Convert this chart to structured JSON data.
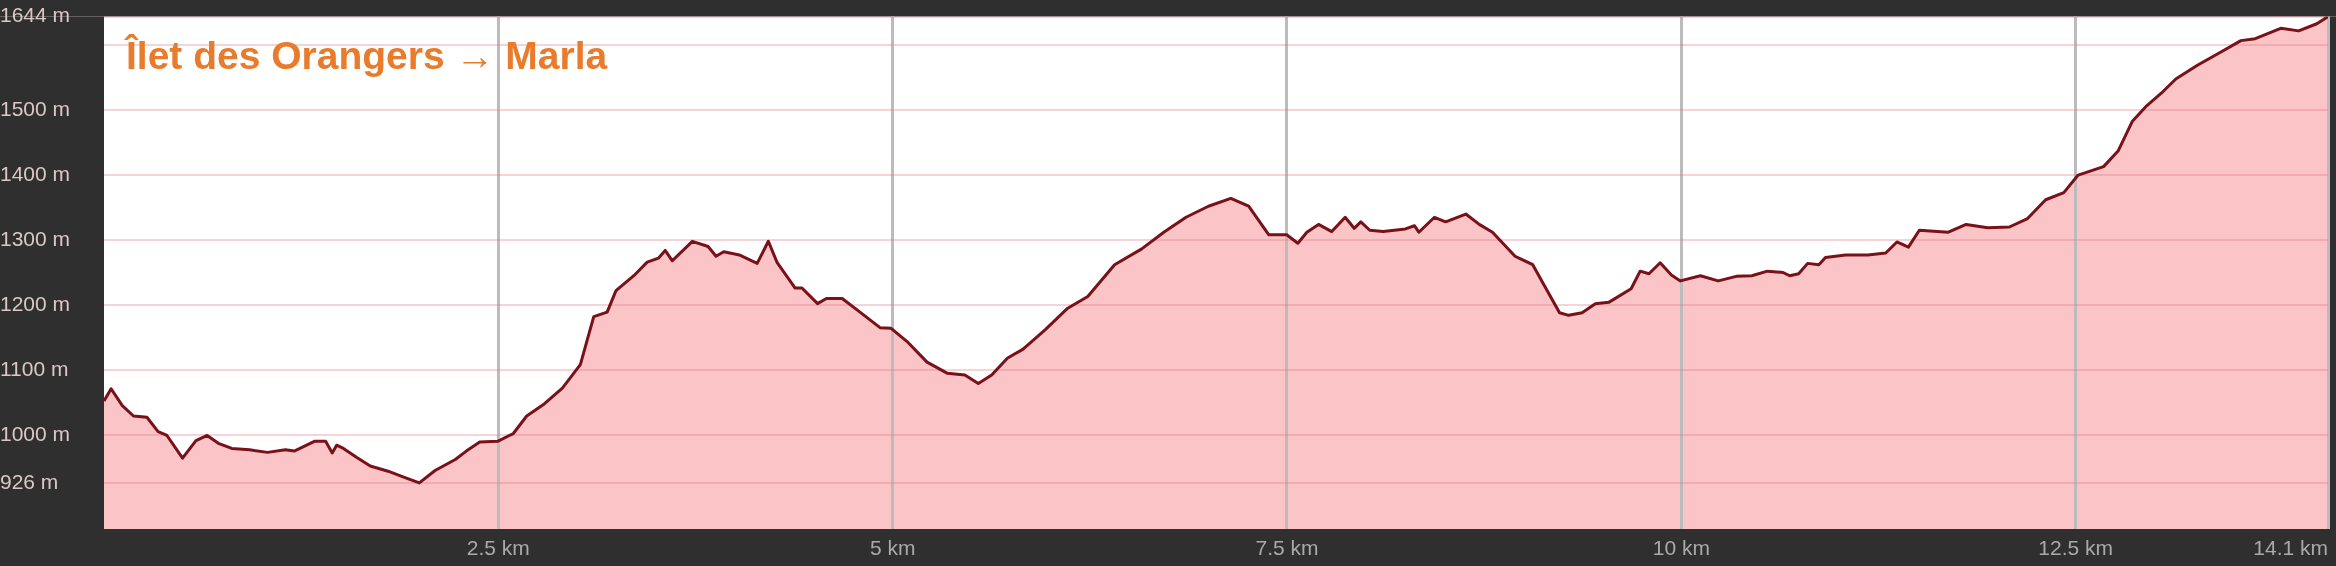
{
  "chart_data": {
    "type": "area",
    "title": "Îlet des Orangers → Marla",
    "x": [
      0,
      0.045,
      0.116,
      0.187,
      0.272,
      0.343,
      0.399,
      0.498,
      0.583,
      0.654,
      0.725,
      0.81,
      0.923,
      1.037,
      1.15,
      1.206,
      1.334,
      1.405,
      1.447,
      1.475,
      1.518,
      1.603,
      1.688,
      1.801,
      1.9,
      1.999,
      2.099,
      2.227,
      2.297,
      2.382,
      2.496,
      2.595,
      2.68,
      2.793,
      2.906,
      3.02,
      3.105,
      3.19,
      3.246,
      3.359,
      3.444,
      3.515,
      3.558,
      3.603,
      3.73,
      3.83,
      3.88,
      3.929,
      4.028,
      4.141,
      4.212,
      4.268,
      4.382,
      4.425,
      4.524,
      4.58,
      4.68,
      4.793,
      4.92,
      4.99,
      5.09,
      5.218,
      5.345,
      5.458,
      5.543,
      5.628,
      5.727,
      5.827,
      5.968,
      6.11,
      6.237,
      6.407,
      6.577,
      6.719,
      6.86,
      7.002,
      7.144,
      7.257,
      7.385,
      7.498,
      7.569,
      7.626,
      7.7,
      7.784,
      7.869,
      7.926,
      7.968,
      8.025,
      8.11,
      8.251,
      8.308,
      8.336,
      8.435,
      8.506,
      8.634,
      8.719,
      8.803,
      8.946,
      9.058,
      9.143,
      9.228,
      9.286,
      9.371,
      9.455,
      9.54,
      9.682,
      9.739,
      9.795,
      9.866,
      9.937,
      9.994,
      10.121,
      10.234,
      10.348,
      10.447,
      10.546,
      10.645,
      10.687,
      10.744,
      10.801,
      10.872,
      10.914,
      11.041,
      11.183,
      11.296,
      11.367,
      11.44,
      11.509,
      11.693,
      11.806,
      11.943,
      12.08,
      12.195,
      12.31,
      12.425,
      12.516,
      12.677,
      12.769,
      12.86,
      12.952,
      13.043,
      13.135,
      13.272,
      13.41,
      13.548,
      13.639,
      13.8,
      13.914,
      14.029,
      14.1
    ],
    "values": [
      1052,
      1071,
      1045,
      1029,
      1027,
      1005,
      999,
      964,
      991,
      999,
      987,
      979,
      977,
      973,
      977,
      975,
      990,
      990,
      972,
      984,
      979,
      965,
      952,
      944,
      935,
      926,
      945,
      962,
      975,
      989,
      990,
      1002,
      1029,
      1048,
      1072,
      1108,
      1182,
      1189,
      1222,
      1245,
      1266,
      1272,
      1284,
      1268,
      1298,
      1290,
      1275,
      1282,
      1277,
      1264,
      1298,
      1265,
      1226,
      1226,
      1202,
      1210,
      1210,
      1189,
      1165,
      1164,
      1144,
      1112,
      1095,
      1092,
      1079,
      1092,
      1118,
      1132,
      1162,
      1195,
      1213,
      1262,
      1286,
      1312,
      1335,
      1352,
      1364,
      1352,
      1308,
      1308,
      1295,
      1312,
      1324,
      1313,
      1335,
      1318,
      1328,
      1315,
      1313,
      1317,
      1322,
      1312,
      1335,
      1328,
      1340,
      1324,
      1312,
      1275,
      1262,
      1225,
      1188,
      1184,
      1188,
      1202,
      1204,
      1225,
      1252,
      1248,
      1265,
      1246,
      1237,
      1245,
      1237,
      1244,
      1245,
      1252,
      1250,
      1245,
      1248,
      1264,
      1262,
      1273,
      1277,
      1277,
      1280,
      1297,
      1289,
      1315,
      1312,
      1324,
      1319,
      1320,
      1333,
      1362,
      1373,
      1400,
      1413,
      1437,
      1483,
      1507,
      1526,
      1548,
      1569,
      1588,
      1607,
      1610,
      1626,
      1622,
      1633,
      1644
    ],
    "color": "#fbc5c8",
    "xlim": [
      0,
      14.1
    ],
    "ylim": [
      855,
      1644
    ],
    "xticks": [
      {
        "value": 2.5,
        "label": "2.5 km"
      },
      {
        "value": 5,
        "label": "5 km"
      },
      {
        "value": 7.5,
        "label": "7.5 km"
      },
      {
        "value": 10,
        "label": "10 km"
      },
      {
        "value": 12.5,
        "label": "12.5 km"
      },
      {
        "value": 14.1,
        "label": "14.1 km"
      }
    ],
    "yticks": [
      {
        "value": 926,
        "label": "926 m"
      },
      {
        "value": 1000,
        "label": "1000 m"
      },
      {
        "value": 1100,
        "label": "1100 m"
      },
      {
        "value": 1200,
        "label": "1200 m"
      },
      {
        "value": 1300,
        "label": "1300 m"
      },
      {
        "value": 1400,
        "label": "1400 m"
      },
      {
        "value": 1500,
        "label": "1500 m"
      },
      {
        "value": 1600,
        "label": null
      },
      {
        "value": 1644,
        "label": "1644 m"
      }
    ],
    "grid": true
  }
}
